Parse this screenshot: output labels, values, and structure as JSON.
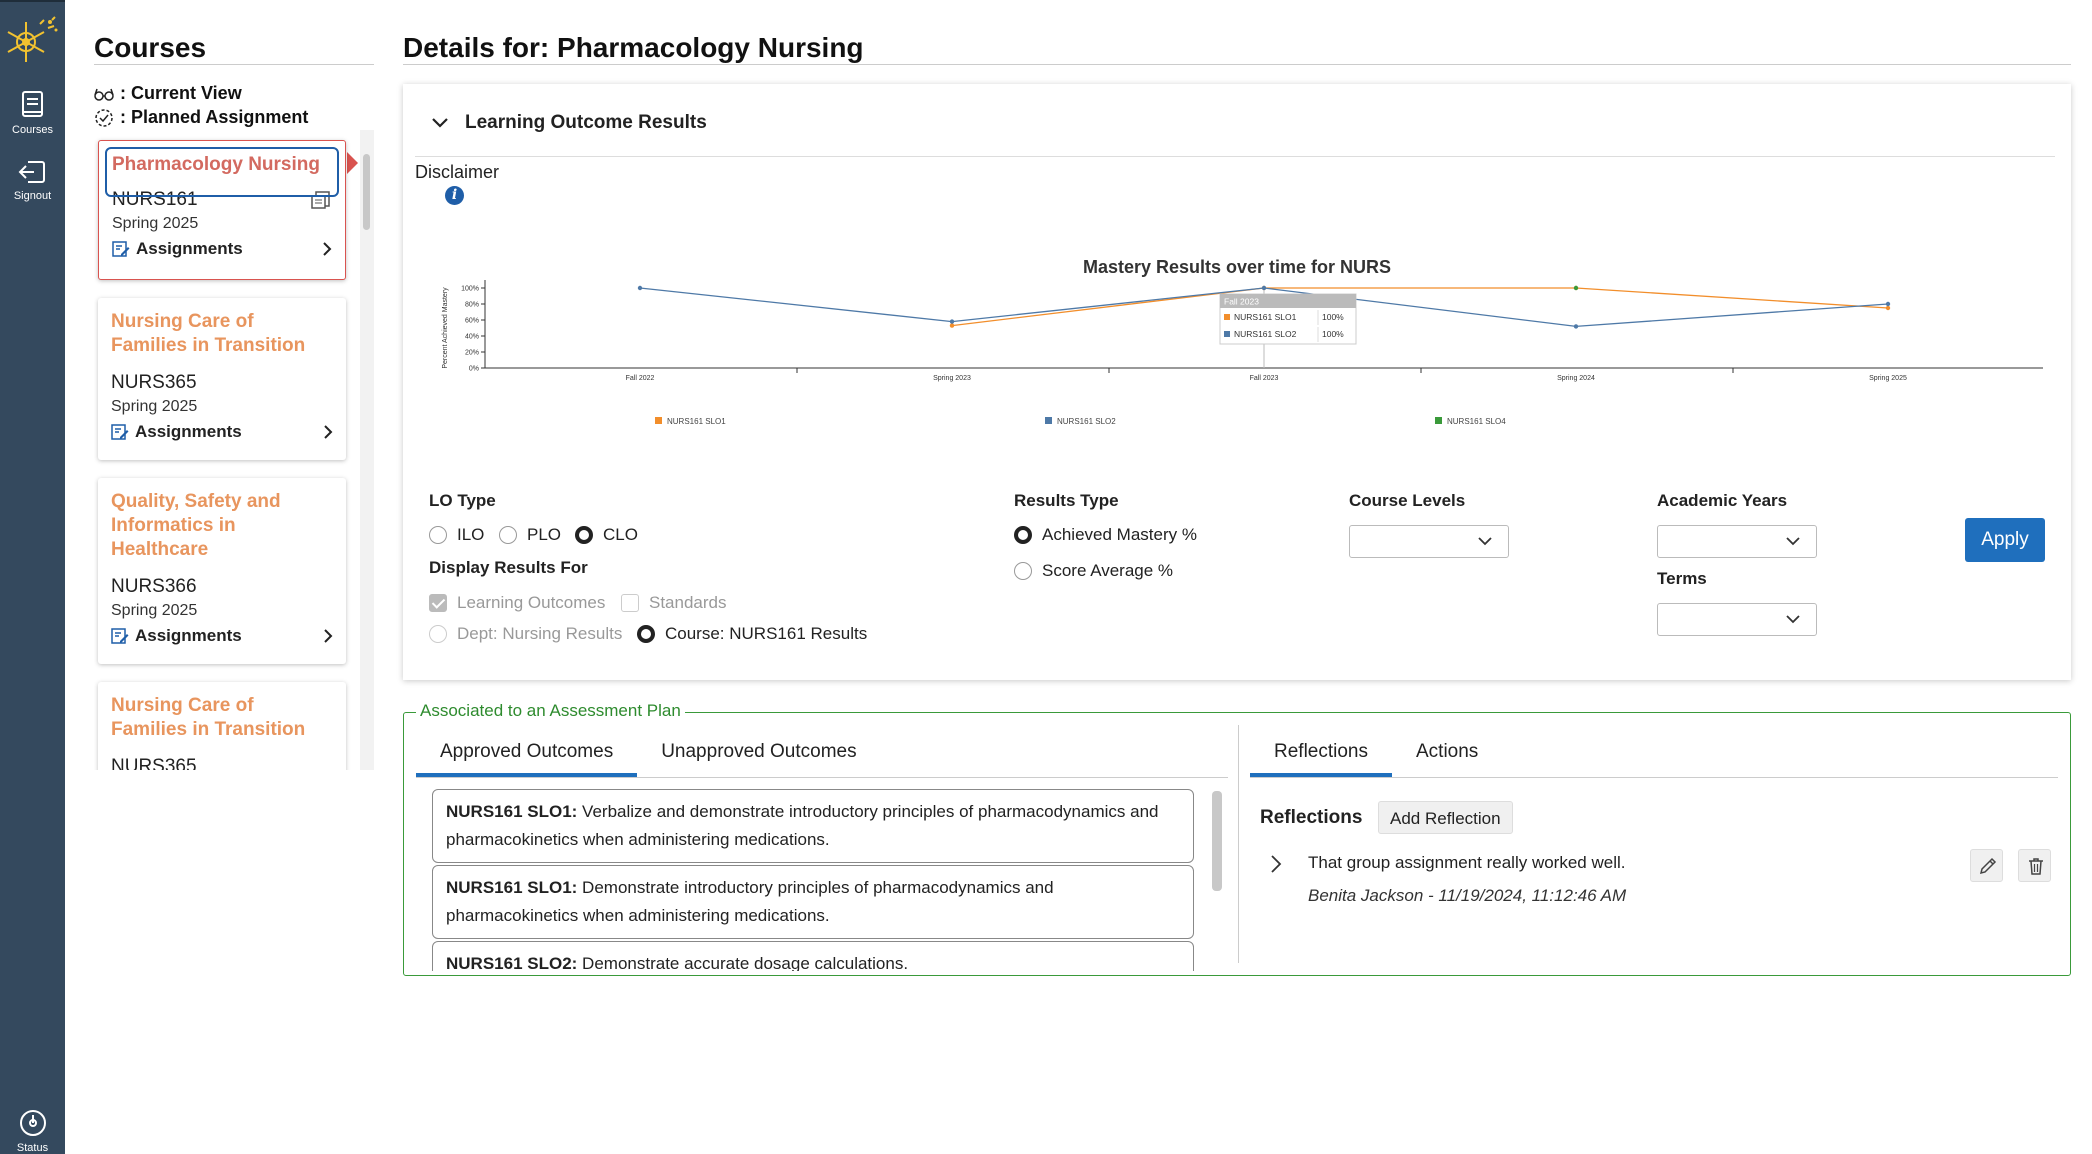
{
  "rail": {
    "items": [
      {
        "label": "Courses"
      },
      {
        "label": "Signout"
      },
      {
        "label": "Status"
      }
    ]
  },
  "courses": {
    "title": "Courses",
    "legend": {
      "current_view": ": Current View",
      "planned_assignment": ": Planned Assignment"
    },
    "assignments_label": "Assignments",
    "items": [
      {
        "name": "Pharmacology Nursing",
        "code": "NURS161",
        "term": "Spring 2025"
      },
      {
        "name": "Nursing Care of Families in Transition",
        "code": "NURS365",
        "term": "Spring 2025"
      },
      {
        "name": "Quality, Safety and Informatics in Healthcare",
        "code": "NURS366",
        "term": "Spring 2025"
      },
      {
        "name": "Nursing Care of Families in Transition",
        "code": "NURS365",
        "term": ""
      }
    ]
  },
  "details": {
    "title": "Details for: Pharmacology Nursing",
    "section_title": "Learning Outcome Results",
    "disclaimer": "Disclaimer"
  },
  "chart_data": {
    "type": "line",
    "title": "Mastery Results over time for NURS",
    "ylabel": "Percent Achieved Mastery",
    "xlabel": "",
    "ylim": [
      0,
      100
    ],
    "y_ticks": [
      "0%",
      "20%",
      "40%",
      "60%",
      "80%",
      "100%"
    ],
    "categories": [
      "Fall 2022",
      "Spring 2023",
      "Fall 2023",
      "Spring 2024",
      "Spring 2025"
    ],
    "series": [
      {
        "name": "NURS161 SLO1",
        "color": "#f28e2b",
        "values": [
          null,
          53,
          100,
          100,
          75
        ]
      },
      {
        "name": "NURS161 SLO2",
        "color": "#4e79a7",
        "values": [
          100,
          58,
          100,
          52,
          80
        ]
      },
      {
        "name": "NURS161 SLO4",
        "color": "#3a9a3a",
        "values": [
          null,
          null,
          null,
          100,
          null
        ]
      }
    ],
    "tooltip": {
      "title": "Fall 2023",
      "rows": [
        {
          "name": "NURS161 SLO1",
          "value": "100%",
          "color": "#f28e2b"
        },
        {
          "name": "NURS161 SLO2",
          "value": "100%",
          "color": "#4e79a7"
        }
      ]
    },
    "legend_position": "bottom",
    "grid": false
  },
  "filters": {
    "lo_type": {
      "label": "LO Type",
      "options": [
        "ILO",
        "PLO",
        "CLO"
      ],
      "selected": "CLO"
    },
    "display_results": {
      "label": "Display Results For",
      "learning_outcomes": "Learning Outcomes",
      "standards": "Standards",
      "dept": "Dept: Nursing Results",
      "course": "Course: NURS161 Results"
    },
    "results_type": {
      "label": "Results Type",
      "options": [
        "Achieved Mastery %",
        "Score Average %"
      ],
      "selected": "Achieved Mastery %"
    },
    "course_levels": {
      "label": "Course Levels",
      "value": ""
    },
    "academic_years": {
      "label": "Academic Years",
      "value": ""
    },
    "terms": {
      "label": "Terms",
      "value": ""
    },
    "apply_label": "Apply"
  },
  "plan": {
    "legend": "Associated to an Assessment Plan",
    "outcome_tabs": [
      "Approved Outcomes",
      "Unapproved Outcomes"
    ],
    "outcomes": [
      {
        "code": "NURS161 SLO1:",
        "text": " Verbalize and demonstrate introductory principles of pharmacodynamics and pharmacokinetics when administering medications."
      },
      {
        "code": "NURS161 SLO1:",
        "text": " Demonstrate introductory principles of pharmacodynamics and pharmacokinetics when administering medications."
      },
      {
        "code": "NURS161 SLO2:",
        "text": " Demonstrate accurate dosage calculations."
      }
    ],
    "side_tabs": [
      "Reflections",
      "Actions"
    ],
    "reflections_title": "Reflections",
    "add_reflection": "Add Reflection",
    "reflection": {
      "text": "That group assignment really worked well.",
      "meta": "Benita Jackson - 11/19/2024, 11:12:46 AM"
    }
  }
}
